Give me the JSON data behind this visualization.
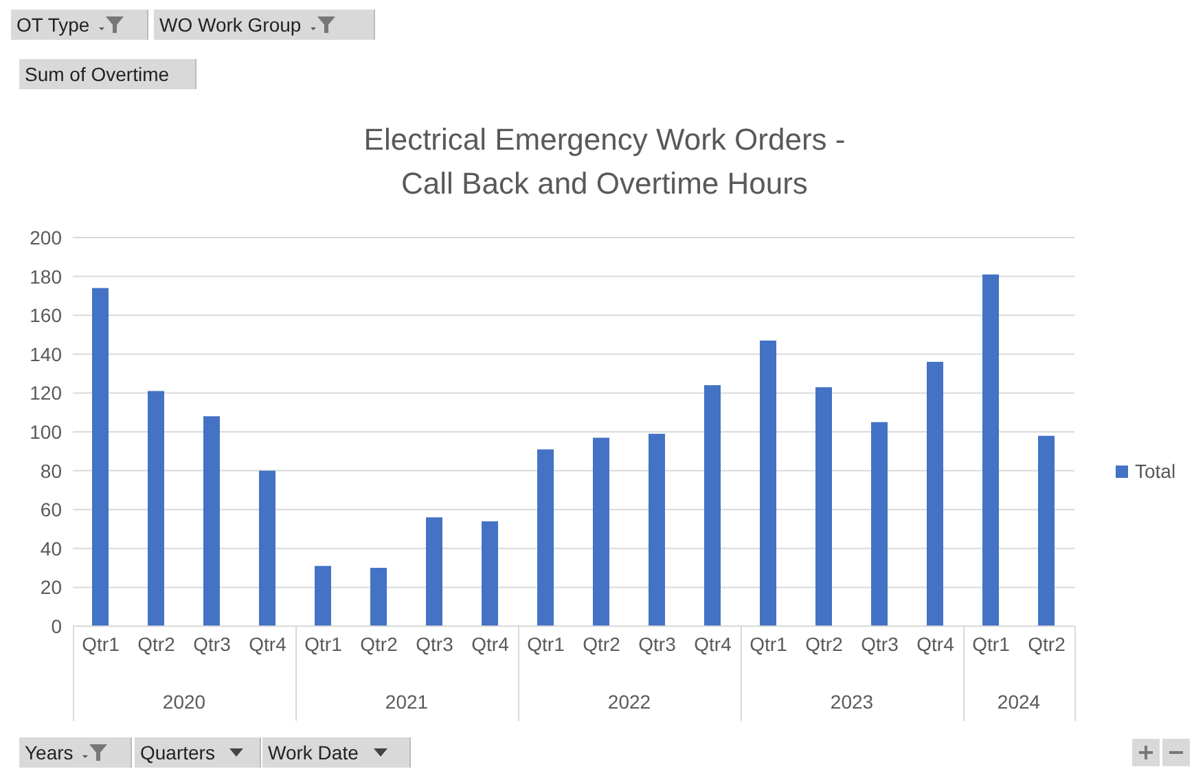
{
  "chart_data": {
    "type": "bar",
    "title": "Electrical Emergency Work Orders - Call Back and Overtime Hours",
    "categories": [
      "Qtr1",
      "Qtr2",
      "Qtr3",
      "Qtr4",
      "Qtr1",
      "Qtr2",
      "Qtr3",
      "Qtr4",
      "Qtr1",
      "Qtr2",
      "Qtr3",
      "Qtr4",
      "Qtr1",
      "Qtr2",
      "Qtr3",
      "Qtr4",
      "Qtr1",
      "Qtr2"
    ],
    "series": [
      {
        "name": "Total",
        "color": "#4472c4",
        "values": [
          174,
          121,
          108,
          80,
          31,
          30,
          56,
          54,
          91,
          97,
          99,
          124,
          147,
          123,
          105,
          136,
          181,
          98
        ]
      }
    ],
    "ylim": [
      0,
      200
    ],
    "yticks": [
      0,
      20,
      40,
      60,
      80,
      100,
      120,
      140,
      160,
      180,
      200
    ],
    "grid": "y",
    "legend": "right",
    "annotations": [
      "OT Type",
      "WO Work Group",
      "Sum of Overtime",
      "Years",
      "Quarters",
      "Work Date",
      "2020",
      "2021",
      "2022",
      "2023",
      "2024"
    ]
  }
}
